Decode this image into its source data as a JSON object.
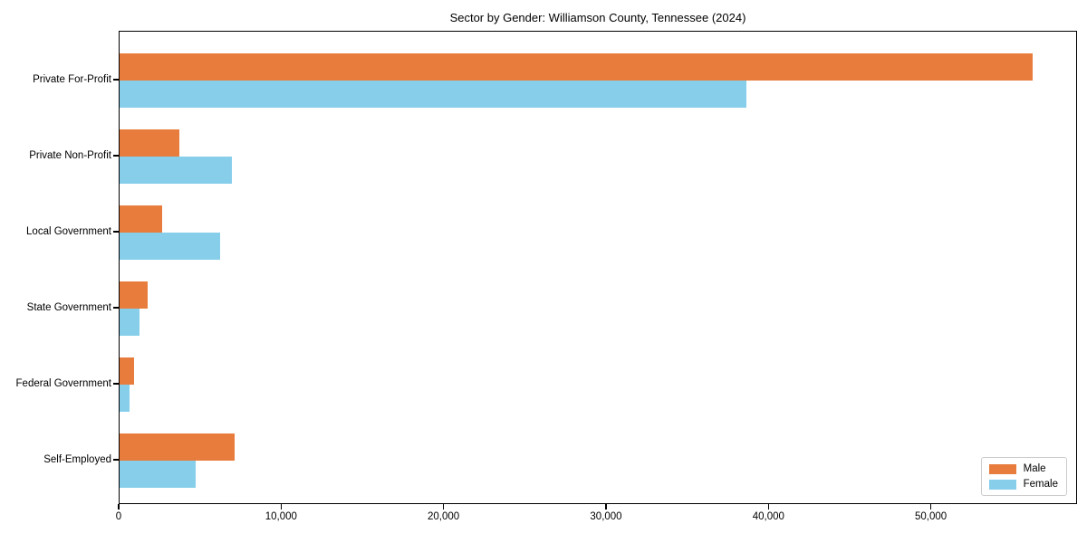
{
  "figure": {
    "title": "Sector by Gender: Williamson County, Tennessee (2024)"
  },
  "chart_data": {
    "type": "bar",
    "orientation": "horizontal",
    "title": "Sector by Gender: Williamson County, Tennessee (2024)",
    "categories": [
      "Private For-Profit",
      "Private Non-Profit",
      "Local Government",
      "State Government",
      "Federal Government",
      "Self-Employed"
    ],
    "series": [
      {
        "name": "Male",
        "color": "#E87C3C",
        "values": [
          56200,
          3700,
          2600,
          1700,
          900,
          7100
        ]
      },
      {
        "name": "Female",
        "color": "#87CEEB",
        "values": [
          38600,
          6900,
          6200,
          1250,
          630,
          4700
        ]
      }
    ],
    "xlabel": "",
    "ylabel": "",
    "xlim": [
      0,
      59000
    ],
    "x_ticks": [
      0,
      10000,
      20000,
      30000,
      40000,
      50000
    ],
    "x_tick_labels": [
      "0",
      "10,000",
      "20,000",
      "30,000",
      "40,000",
      "50,000"
    ],
    "grid": false,
    "legend": {
      "position": "lower-right",
      "entries": [
        "Male",
        "Female"
      ]
    }
  }
}
